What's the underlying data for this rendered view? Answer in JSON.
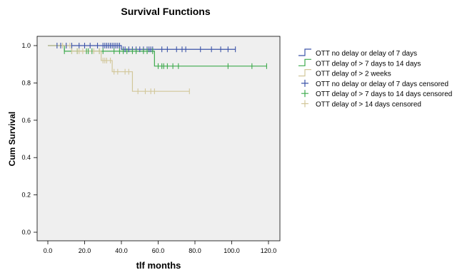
{
  "chart_data": {
    "type": "line",
    "title": "Survival Functions",
    "xlabel": "tlf months",
    "ylabel": "Cum Survival",
    "xlim": [
      0,
      120
    ],
    "ylim": [
      0,
      1.05
    ],
    "x_ticks": [
      "0.0",
      "20.0",
      "40.0",
      "60.0",
      "80.0",
      "100.0",
      "120.0"
    ],
    "y_ticks": [
      "0.0",
      "0.2",
      "0.4",
      "0.6",
      "0.8",
      "1.0"
    ],
    "grid": false,
    "legend_position": "right",
    "series": [
      {
        "name": "OTT no delay or delay of 7 days",
        "color": "#3d55a9",
        "steps": [
          [
            0,
            1.0
          ],
          [
            40,
            0.98
          ],
          [
            102,
            0.98
          ]
        ],
        "censored_name": "OTT no delay or delay of 7 days censored",
        "censored_color": "#3d55a9",
        "censored_x": [
          5,
          7,
          10,
          13,
          17,
          20,
          23,
          27,
          30,
          31,
          32,
          33,
          34,
          35,
          36,
          37,
          38,
          39,
          41,
          42,
          44,
          46,
          48,
          50,
          52,
          54,
          55,
          56,
          57,
          62,
          65,
          70,
          73,
          75,
          83,
          89,
          94,
          98,
          102
        ]
      },
      {
        "name": "OTT delay of > 7 days to 14 days",
        "color": "#3daa4c",
        "steps": [
          [
            0,
            1.0
          ],
          [
            9,
            0.97
          ],
          [
            43,
            0.97
          ],
          [
            58,
            0.89
          ],
          [
            119,
            0.89
          ]
        ],
        "censored_name": "OTT delay of > 7 days to 14 days censored",
        "censored_color": "#3daa4c",
        "censored_x": [
          9,
          13,
          16,
          21,
          22,
          24,
          28,
          30,
          36,
          39,
          41,
          43,
          46,
          48,
          52,
          54,
          57,
          60,
          62,
          63,
          65,
          68,
          71,
          98,
          111,
          119
        ]
      },
      {
        "name": "OTT delay of > 2 weeks",
        "color": "#d2c79a",
        "steps": [
          [
            0,
            1.0
          ],
          [
            13,
            0.97
          ],
          [
            29,
            0.92
          ],
          [
            35,
            0.86
          ],
          [
            46,
            0.755
          ],
          [
            77,
            0.755
          ]
        ],
        "censored_name": "OTT delay of > 14 days censored",
        "censored_color": "#d2c79a",
        "censored_x": [
          8,
          12,
          13,
          16,
          17,
          19,
          25,
          28,
          30,
          31,
          32,
          34,
          36,
          38,
          42,
          44,
          49,
          53,
          56,
          58,
          77
        ]
      }
    ]
  }
}
